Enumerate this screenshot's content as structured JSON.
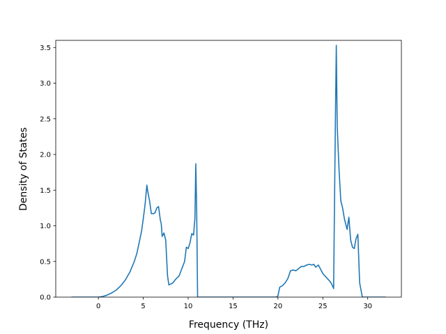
{
  "chart_data": {
    "type": "line",
    "title": "",
    "xlabel": "Frequency (THz)",
    "ylabel": "Density of States",
    "xlim": [
      -4.75,
      33.75
    ],
    "ylim": [
      0,
      3.6
    ],
    "xticks": [
      0,
      5,
      10,
      15,
      20,
      25,
      30
    ],
    "yticks": [
      0.0,
      0.5,
      1.0,
      1.5,
      2.0,
      2.5,
      3.0,
      3.5
    ],
    "xtick_labels": [
      "0",
      "5",
      "10",
      "15",
      "20",
      "25",
      "30"
    ],
    "ytick_labels": [
      "0.0",
      "0.5",
      "1.0",
      "1.5",
      "2.0",
      "2.5",
      "3.0",
      "3.5"
    ],
    "grid": false,
    "legend": "none",
    "line_color": "#1f77b4",
    "series": [
      {
        "x": [
          -3.0,
          -2.0,
          -1.0,
          0.0,
          0.5,
          1.0,
          1.5,
          2.0,
          2.5,
          3.0,
          3.5,
          4.0,
          4.3,
          4.6,
          4.8,
          5.0,
          5.2,
          5.4,
          5.5,
          5.7,
          5.9,
          6.1,
          6.3,
          6.5,
          6.7,
          6.9,
          7.0,
          7.1,
          7.3,
          7.5,
          7.7,
          7.85,
          8.0,
          8.3,
          8.6,
          9.0,
          9.3,
          9.6,
          9.8,
          10.0,
          10.2,
          10.4,
          10.6,
          10.75,
          10.85,
          10.95,
          11.05,
          11.15,
          12.0,
          14.0,
          16.0,
          18.0,
          19.8,
          20.0,
          20.2,
          20.5,
          20.8,
          21.1,
          21.4,
          21.7,
          22.0,
          22.3,
          22.6,
          22.9,
          23.2,
          23.5,
          23.8,
          24.0,
          24.2,
          24.5,
          25.0,
          25.5,
          25.8,
          26.0,
          26.2,
          26.4,
          26.5,
          26.6,
          26.8,
          27.0,
          27.2,
          27.4,
          27.7,
          27.9,
          28.1,
          28.3,
          28.5,
          28.7,
          28.9,
          29.1,
          29.4,
          30.0,
          31.0,
          32.0
        ],
        "y": [
          0.0,
          0.0,
          0.0,
          0.0,
          0.01,
          0.03,
          0.06,
          0.1,
          0.16,
          0.24,
          0.35,
          0.5,
          0.62,
          0.8,
          0.92,
          1.1,
          1.3,
          1.57,
          1.48,
          1.35,
          1.17,
          1.17,
          1.18,
          1.25,
          1.27,
          1.08,
          1.03,
          0.85,
          0.9,
          0.8,
          0.3,
          0.17,
          0.18,
          0.2,
          0.25,
          0.3,
          0.4,
          0.5,
          0.7,
          0.68,
          0.76,
          0.89,
          0.87,
          1.1,
          1.87,
          1.2,
          0.0,
          0.0,
          0.0,
          0.0,
          0.0,
          0.0,
          0.0,
          0.02,
          0.14,
          0.16,
          0.2,
          0.26,
          0.37,
          0.38,
          0.37,
          0.4,
          0.43,
          0.43,
          0.45,
          0.46,
          0.45,
          0.46,
          0.42,
          0.45,
          0.33,
          0.26,
          0.22,
          0.18,
          0.12,
          2.5,
          3.53,
          2.4,
          1.8,
          1.35,
          1.25,
          1.1,
          0.95,
          1.12,
          0.8,
          0.7,
          0.68,
          0.82,
          0.88,
          0.2,
          0.0,
          0.0,
          0.0,
          0.0
        ]
      }
    ]
  }
}
